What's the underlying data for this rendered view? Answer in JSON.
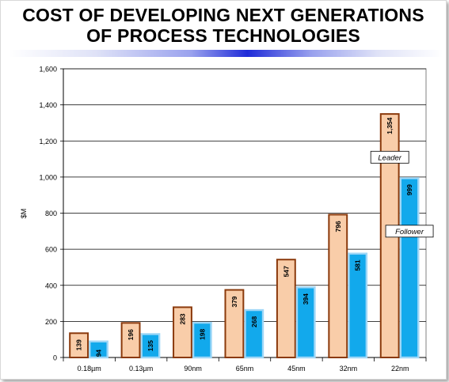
{
  "title_line1": "COST OF DEVELOPING NEXT GENERATIONS",
  "title_line2": "OF PROCESS TECHNOLOGIES",
  "colors": {
    "leader_fill": "#f9cda9",
    "leader_border": "#8b3a0c",
    "follower_fill": "#12a9ec",
    "follower_border": "#9fd7f7",
    "title_bar": "#1f2bd8"
  },
  "chart_data": {
    "type": "bar",
    "title": "",
    "xlabel": "",
    "ylabel": "$M",
    "ylim": [
      0,
      1600
    ],
    "yticks": [
      0,
      200,
      400,
      600,
      800,
      1000,
      1200,
      1400,
      1600
    ],
    "ytick_labels": [
      "0",
      "200",
      "400",
      "600",
      "800",
      "1,000",
      "1,200",
      "1,400",
      "1,600"
    ],
    "grid": true,
    "categories": [
      "0.18µm",
      "0.13µm",
      "90nm",
      "65nm",
      "45nm",
      "32nm",
      "22nm"
    ],
    "series": [
      {
        "name": "Leader",
        "values": [
          139,
          196,
          283,
          379,
          547,
          796,
          1354
        ],
        "labels": [
          "139",
          "196",
          "283",
          "379",
          "547",
          "796",
          "1,354"
        ]
      },
      {
        "name": "Follower",
        "values": [
          94,
          135,
          198,
          268,
          394,
          581,
          999
        ],
        "labels": [
          "94",
          "135",
          "198",
          "268",
          "394",
          "581",
          "999"
        ]
      }
    ],
    "annotations": [
      {
        "text": "Leader",
        "series": 0,
        "category": 6,
        "value": 1110
      },
      {
        "text": "Follower",
        "series": 1,
        "category": 6,
        "value": 700
      }
    ]
  }
}
